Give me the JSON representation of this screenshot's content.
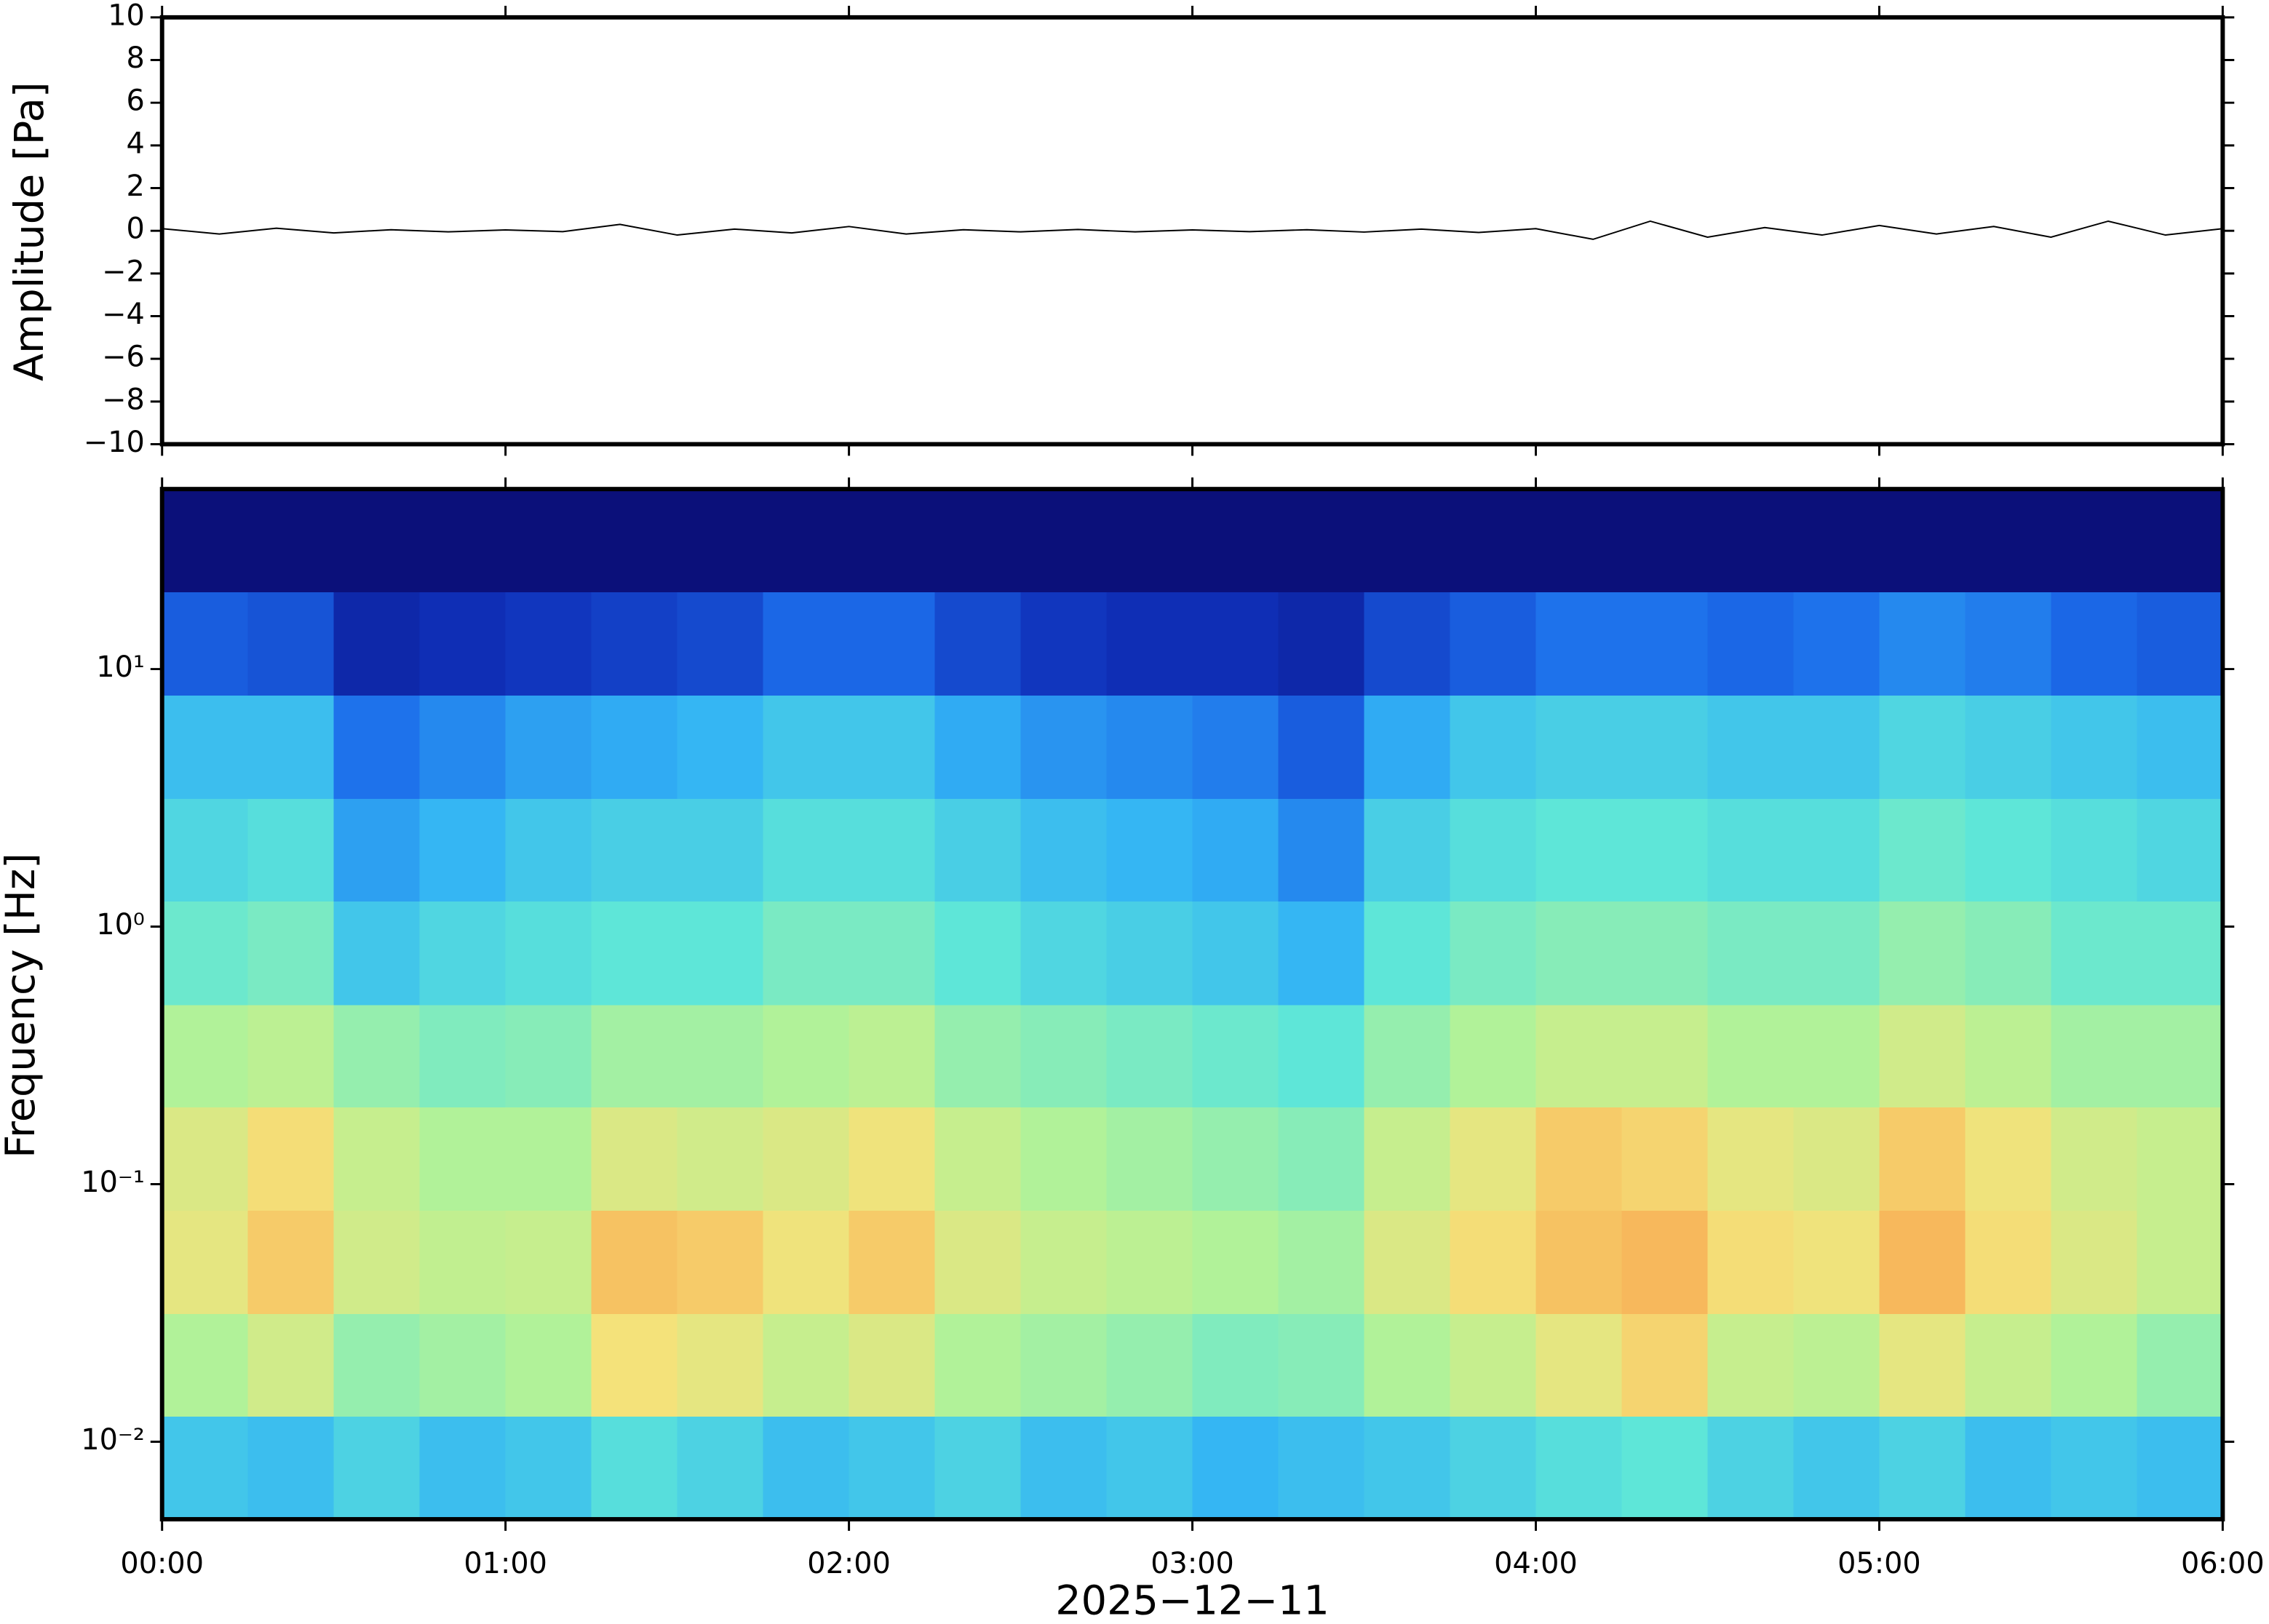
{
  "chart_data": [
    {
      "type": "line",
      "ylabel": "Amplitude [Pa]",
      "x": [
        0,
        10,
        20,
        30,
        40,
        50,
        60,
        70,
        80,
        90,
        100,
        110,
        120,
        130,
        140,
        150,
        160,
        170,
        180,
        190,
        200,
        210,
        220,
        230,
        240,
        250,
        260,
        270,
        280,
        290,
        300,
        310,
        320,
        330,
        340,
        350,
        360
      ],
      "series": [
        {
          "color": "#000000",
          "values": [
            0.1,
            -0.15,
            0.12,
            -0.1,
            0.05,
            -0.05,
            0.04,
            -0.04,
            0.3,
            -0.2,
            0.08,
            -0.1,
            0.2,
            -0.15,
            0.05,
            -0.05,
            0.06,
            -0.05,
            0.04,
            -0.04,
            0.05,
            -0.06,
            0.08,
            -0.08,
            0.1,
            -0.4,
            0.45,
            -0.3,
            0.15,
            -0.2,
            0.25,
            -0.15,
            0.2,
            -0.3,
            0.45,
            -0.2,
            0.1
          ]
        }
      ],
      "xlim": [
        0,
        360
      ],
      "xticks": [
        0,
        60,
        120,
        180,
        240,
        300,
        360
      ],
      "ylim": [
        -10,
        10
      ],
      "yticks": [
        {
          "value": -10,
          "label": "−10"
        },
        {
          "value": -8,
          "label": "−8"
        },
        {
          "value": -6,
          "label": "−6"
        },
        {
          "value": -4,
          "label": "−4"
        },
        {
          "value": -2,
          "label": "−2"
        },
        0,
        2,
        4,
        6,
        8,
        10
      ]
    },
    {
      "type": "heatmap",
      "ylabel": "Frequency [Hz]",
      "xlabel": "2025−12−11",
      "log_y": true,
      "time_bins": [
        0,
        15,
        30,
        45,
        60,
        75,
        90,
        105,
        120,
        135,
        150,
        165,
        180,
        195,
        210,
        225,
        240,
        255,
        270,
        285,
        300,
        315,
        330,
        345,
        360
      ],
      "frequency_bins": [
        0.005,
        0.0126,
        0.0316,
        0.0794,
        0.2,
        0.5,
        1.26,
        3.16,
        7.94,
        20,
        50
      ],
      "z": [
        [
          0.42,
          0.4,
          0.45,
          0.4,
          0.42,
          0.48,
          0.45,
          0.4,
          0.42,
          0.45,
          0.4,
          0.42,
          0.38,
          0.4,
          0.42,
          0.45,
          0.48,
          0.5,
          0.45,
          0.42,
          0.45,
          0.4,
          0.42,
          0.4
        ],
        [
          0.62,
          0.68,
          0.58,
          0.6,
          0.62,
          0.75,
          0.72,
          0.66,
          0.7,
          0.62,
          0.6,
          0.58,
          0.55,
          0.56,
          0.62,
          0.66,
          0.72,
          0.78,
          0.66,
          0.64,
          0.72,
          0.66,
          0.62,
          0.58
        ],
        [
          0.72,
          0.8,
          0.68,
          0.65,
          0.66,
          0.82,
          0.8,
          0.74,
          0.8,
          0.7,
          0.66,
          0.64,
          0.62,
          0.6,
          0.7,
          0.76,
          0.82,
          0.84,
          0.76,
          0.74,
          0.84,
          0.76,
          0.7,
          0.66
        ],
        [
          0.7,
          0.76,
          0.66,
          0.62,
          0.62,
          0.7,
          0.68,
          0.7,
          0.74,
          0.66,
          0.62,
          0.6,
          0.58,
          0.56,
          0.66,
          0.72,
          0.8,
          0.78,
          0.72,
          0.7,
          0.8,
          0.74,
          0.68,
          0.66
        ],
        [
          0.62,
          0.64,
          0.58,
          0.55,
          0.56,
          0.6,
          0.6,
          0.62,
          0.64,
          0.58,
          0.56,
          0.54,
          0.52,
          0.5,
          0.58,
          0.62,
          0.66,
          0.66,
          0.62,
          0.62,
          0.68,
          0.64,
          0.6,
          0.6
        ],
        [
          0.52,
          0.54,
          0.42,
          0.46,
          0.48,
          0.5,
          0.5,
          0.54,
          0.54,
          0.5,
          0.46,
          0.44,
          0.42,
          0.38,
          0.5,
          0.54,
          0.56,
          0.56,
          0.54,
          0.54,
          0.58,
          0.56,
          0.52,
          0.52
        ],
        [
          0.46,
          0.48,
          0.34,
          0.38,
          0.42,
          0.44,
          0.44,
          0.48,
          0.48,
          0.44,
          0.4,
          0.38,
          0.36,
          0.3,
          0.44,
          0.48,
          0.5,
          0.5,
          0.48,
          0.48,
          0.52,
          0.5,
          0.48,
          0.46
        ],
        [
          0.4,
          0.4,
          0.26,
          0.3,
          0.34,
          0.36,
          0.38,
          0.42,
          0.42,
          0.36,
          0.32,
          0.3,
          0.28,
          0.22,
          0.36,
          0.42,
          0.44,
          0.44,
          0.42,
          0.42,
          0.46,
          0.44,
          0.42,
          0.4
        ],
        [
          0.22,
          0.2,
          0.1,
          0.12,
          0.14,
          0.16,
          0.18,
          0.24,
          0.24,
          0.18,
          0.14,
          0.12,
          0.12,
          0.1,
          0.18,
          0.22,
          0.26,
          0.26,
          0.24,
          0.26,
          0.3,
          0.28,
          0.24,
          0.22
        ],
        [
          0.02,
          0.02,
          0.02,
          0.02,
          0.02,
          0.02,
          0.02,
          0.02,
          0.02,
          0.02,
          0.02,
          0.02,
          0.02,
          0.02,
          0.02,
          0.02,
          0.02,
          0.02,
          0.02,
          0.02,
          0.02,
          0.02,
          0.02,
          0.02
        ]
      ],
      "colormap": [
        "#0a0a6e",
        "#0f2fb8",
        "#1c6cea",
        "#33b4f4",
        "#5ee6d8",
        "#b4f296",
        "#f4e27a",
        "#f8a850",
        "#e8503a"
      ],
      "xlim": [
        0,
        360
      ],
      "xticks": [
        {
          "value": 0,
          "label": "00:00"
        },
        {
          "value": 60,
          "label": "01:00"
        },
        {
          "value": 120,
          "label": "02:00"
        },
        {
          "value": 180,
          "label": "03:00"
        },
        {
          "value": 240,
          "label": "04:00"
        },
        {
          "value": 300,
          "label": "05:00"
        },
        {
          "value": 360,
          "label": "06:00"
        }
      ],
      "ylim": [
        0.005,
        50
      ],
      "yticks": [
        {
          "value": 0.01,
          "label": "10⁻²"
        },
        {
          "value": 0.1,
          "label": "10⁻¹"
        },
        {
          "value": 1,
          "label": "10⁰"
        },
        {
          "value": 10,
          "label": "10¹"
        }
      ]
    }
  ]
}
